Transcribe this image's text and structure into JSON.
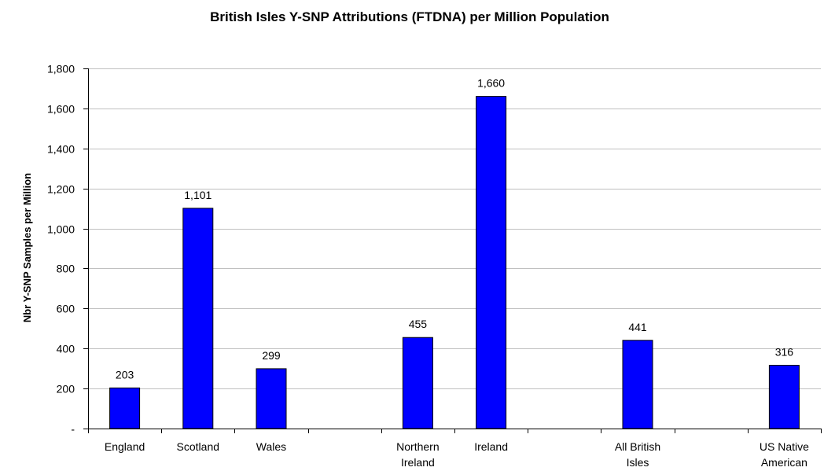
{
  "chart_data": {
    "type": "bar",
    "title": "British Isles Y-SNP Attributions (FTDNA) per Million Population",
    "ylabel": "Nbr Y-SNP Samples per Million",
    "xlabel": "",
    "categories": [
      [
        "England"
      ],
      [
        "Scotland"
      ],
      [
        "Wales"
      ],
      [
        ""
      ],
      [
        "Northern",
        "Ireland"
      ],
      [
        "Ireland"
      ],
      [
        ""
      ],
      [
        "All British",
        "Isles"
      ],
      [
        ""
      ],
      [
        "US Native",
        "American"
      ]
    ],
    "values": [
      203,
      1101,
      299,
      null,
      455,
      1660,
      null,
      441,
      null,
      316
    ],
    "data_labels": [
      "203",
      "1,101",
      "299",
      "",
      "455",
      "1,660",
      "",
      "441",
      "",
      "316"
    ],
    "ylim": [
      0,
      1800
    ],
    "yticks": [
      0,
      200,
      400,
      600,
      800,
      1000,
      1200,
      1400,
      1600,
      1800
    ],
    "ytick_labels": [
      "-",
      "200",
      "400",
      "600",
      "800",
      "1,000",
      "1,200",
      "1,400",
      "1,600",
      "1,800"
    ],
    "bar_color": "#0000ff",
    "bar_edge_color": "#000000",
    "grid": true,
    "grid_color": "#c0c0c0",
    "legend": "none"
  }
}
